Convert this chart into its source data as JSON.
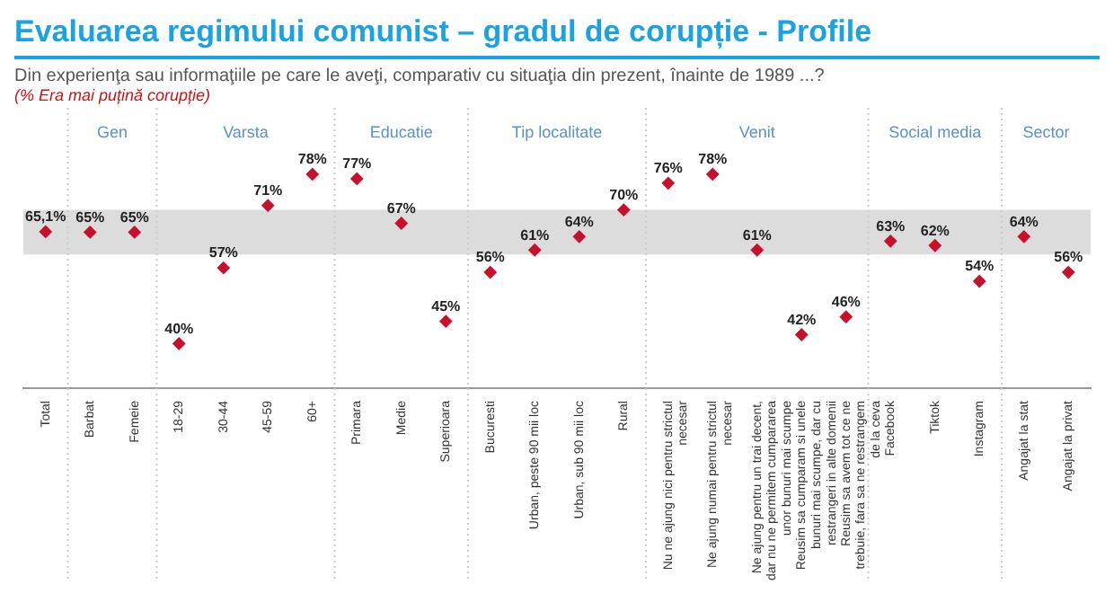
{
  "chart_data": {
    "type": "scatter",
    "title": "Evaluarea regimului comunist – gradul de corupție - Profile",
    "subtitle": "Din experienţa sau informaţiile pe care le aveţi, comparativ cu situaţia din prezent, înainte de 1989 ...?",
    "annotations": [
      "(% Era mai puțină corupție)",
      "Gen",
      "Varsta",
      "Educatie",
      "Tip localitate",
      "Venit",
      "Social media",
      "Sector"
    ],
    "categories": [
      "Total",
      "Barbat",
      "Femeie",
      "18-29",
      "30-44",
      "45-59",
      "60+",
      "Primara",
      "Medie",
      "Superioara",
      "Bucuresti",
      "Urban, peste 90 mii loc",
      "Urban, sub 90 mii loc",
      "Rural",
      "Nu ne ajung nici pentru strictul necesar",
      "Ne ajung numai pentru strictul necesar",
      "Ne ajung pentru un trai decent, dar nu ne permitem cumpararea unor bunuri mai scumpe",
      "Reusim sa cumparam si unele bunuri mai scumpe, dar cu restrangeri in alte domenii",
      "Reusim sa avem tot ce ne trebuie, fara sa ne restrangem de la ceva",
      "Facebook",
      "Tiktok",
      "Instagram",
      "Angajat la stat",
      "Angajat la privat"
    ],
    "values": [
      65.1,
      65,
      65,
      40,
      57,
      71,
      78,
      77,
      67,
      45,
      56,
      61,
      64,
      70,
      76,
      78,
      61,
      42,
      46,
      63,
      62,
      54,
      64,
      56
    ],
    "value_labels": [
      "65,1%",
      "65%",
      "65%",
      "40%",
      "57%",
      "71%",
      "78%",
      "77%",
      "67%",
      "45%",
      "56%",
      "61%",
      "64%",
      "70%",
      "76%",
      "78%",
      "61%",
      "42%",
      "46%",
      "63%",
      "62%",
      "54%",
      "64%",
      "56%"
    ],
    "color": "#c8102e",
    "marker": "diamond",
    "tick_labels": "x",
    "grid": false,
    "legend": false,
    "bands": [
      {
        "axis": "y",
        "from": 60,
        "to": 70,
        "color": "#dcdcdc"
      }
    ]
  }
}
